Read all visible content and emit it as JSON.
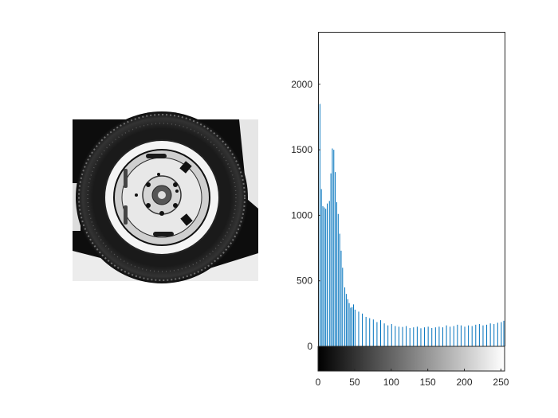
{
  "figure": {
    "background": "#ffffff",
    "bar_color": "#0072bd",
    "axis_color": "#262626"
  },
  "image_panel": {
    "description_icon": "tire-photo",
    "tones": {
      "dark": "#111111",
      "light": "#f4f4f4"
    }
  },
  "chart_data": {
    "type": "bar",
    "subtype": "histogram",
    "title": "",
    "xlabel": "",
    "ylabel": "",
    "xlim": [
      0,
      255
    ],
    "ylim": [
      0,
      2400
    ],
    "grid": false,
    "legend": "none",
    "x_ticks": [
      0,
      50,
      100,
      150,
      200,
      250
    ],
    "y_ticks": [
      0,
      500,
      1000,
      1500,
      2000
    ],
    "x_tick_labels": [
      "0",
      "50",
      "100",
      "150",
      "200",
      "250"
    ],
    "y_tick_labels": [
      "0",
      "500",
      "1000",
      "1500",
      "2000"
    ],
    "colorbar": {
      "position": "below-x-axis",
      "from": "#000000",
      "to": "#ffffff"
    },
    "bins": [
      {
        "x": 0,
        "y": 2050
      },
      {
        "x": 2,
        "y": 1850
      },
      {
        "x": 4,
        "y": 1200
      },
      {
        "x": 6,
        "y": 1070
      },
      {
        "x": 8,
        "y": 1060
      },
      {
        "x": 10,
        "y": 1050
      },
      {
        "x": 12,
        "y": 1090
      },
      {
        "x": 15,
        "y": 1110
      },
      {
        "x": 17,
        "y": 1320
      },
      {
        "x": 19,
        "y": 1510
      },
      {
        "x": 21,
        "y": 1500
      },
      {
        "x": 23,
        "y": 1330
      },
      {
        "x": 25,
        "y": 1100
      },
      {
        "x": 27,
        "y": 1010
      },
      {
        "x": 29,
        "y": 860
      },
      {
        "x": 31,
        "y": 730
      },
      {
        "x": 33,
        "y": 600
      },
      {
        "x": 36,
        "y": 450
      },
      {
        "x": 38,
        "y": 400
      },
      {
        "x": 40,
        "y": 360
      },
      {
        "x": 42,
        "y": 330
      },
      {
        "x": 44,
        "y": 295
      },
      {
        "x": 46,
        "y": 300
      },
      {
        "x": 48,
        "y": 320
      },
      {
        "x": 50,
        "y": 280
      },
      {
        "x": 55,
        "y": 265
      },
      {
        "x": 60,
        "y": 250
      },
      {
        "x": 65,
        "y": 225
      },
      {
        "x": 70,
        "y": 215
      },
      {
        "x": 75,
        "y": 205
      },
      {
        "x": 80,
        "y": 185
      },
      {
        "x": 85,
        "y": 200
      },
      {
        "x": 90,
        "y": 175
      },
      {
        "x": 95,
        "y": 160
      },
      {
        "x": 100,
        "y": 170
      },
      {
        "x": 105,
        "y": 155
      },
      {
        "x": 110,
        "y": 150
      },
      {
        "x": 115,
        "y": 148
      },
      {
        "x": 120,
        "y": 155
      },
      {
        "x": 125,
        "y": 140
      },
      {
        "x": 130,
        "y": 145
      },
      {
        "x": 135,
        "y": 150
      },
      {
        "x": 140,
        "y": 138
      },
      {
        "x": 145,
        "y": 145
      },
      {
        "x": 150,
        "y": 150
      },
      {
        "x": 155,
        "y": 140
      },
      {
        "x": 160,
        "y": 145
      },
      {
        "x": 165,
        "y": 150
      },
      {
        "x": 170,
        "y": 145
      },
      {
        "x": 175,
        "y": 160
      },
      {
        "x": 180,
        "y": 150
      },
      {
        "x": 185,
        "y": 155
      },
      {
        "x": 190,
        "y": 165
      },
      {
        "x": 195,
        "y": 160
      },
      {
        "x": 200,
        "y": 150
      },
      {
        "x": 205,
        "y": 160
      },
      {
        "x": 210,
        "y": 155
      },
      {
        "x": 215,
        "y": 165
      },
      {
        "x": 220,
        "y": 170
      },
      {
        "x": 225,
        "y": 160
      },
      {
        "x": 230,
        "y": 165
      },
      {
        "x": 235,
        "y": 175
      },
      {
        "x": 240,
        "y": 170
      },
      {
        "x": 245,
        "y": 180
      },
      {
        "x": 250,
        "y": 185
      },
      {
        "x": 254,
        "y": 195
      }
    ]
  }
}
